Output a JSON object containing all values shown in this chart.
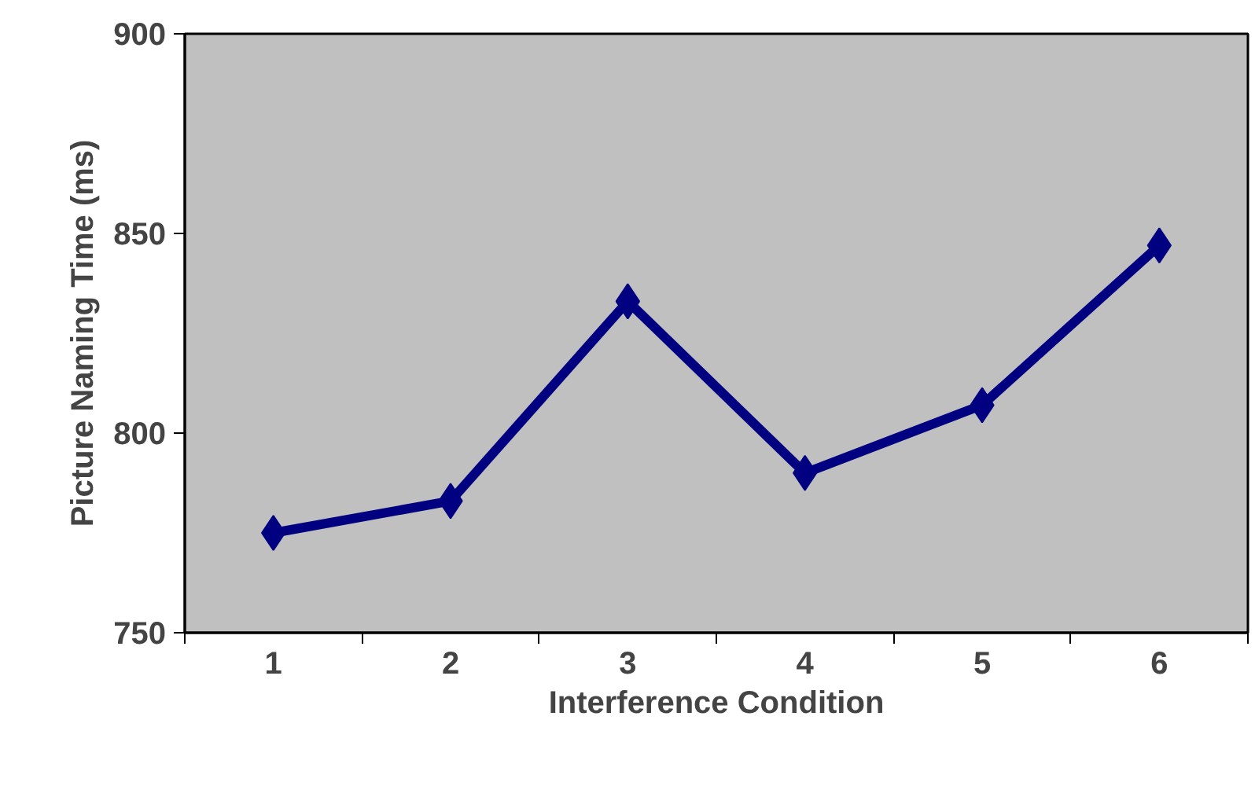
{
  "chart_data": {
    "type": "line",
    "xlabel": "Interference Condition",
    "ylabel": "Picture Naming Time (ms)",
    "categories": [
      "1",
      "2",
      "3",
      "4",
      "5",
      "6"
    ],
    "series": [
      {
        "color": "#000080",
        "values": [
          775,
          783,
          833,
          790,
          807,
          847
        ]
      }
    ],
    "ylim": [
      750,
      900
    ],
    "yticks": [
      750,
      800,
      850,
      900
    ],
    "grid": false,
    "marker": "diamond",
    "line_style": "solid"
  }
}
